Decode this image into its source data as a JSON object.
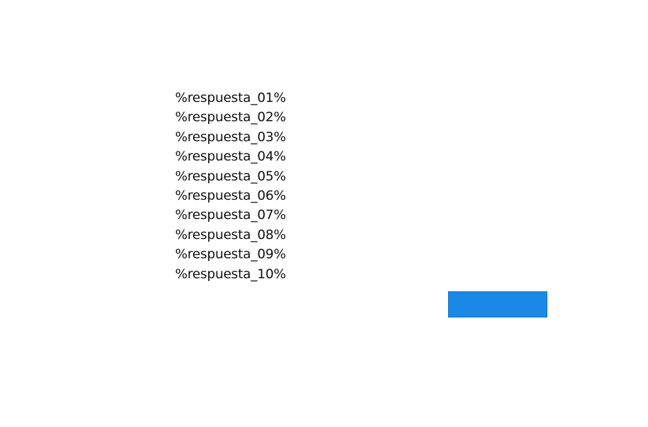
{
  "answers": [
    "%respuesta_01%",
    "%respuesta_02%",
    "%respuesta_03%",
    "%respuesta_04%",
    "%respuesta_05%",
    "%respuesta_06%",
    "%respuesta_07%",
    "%respuesta_08%",
    "%respuesta_09%",
    "%respuesta_10%"
  ],
  "button": {
    "label": "",
    "color": "#1a89e6"
  }
}
